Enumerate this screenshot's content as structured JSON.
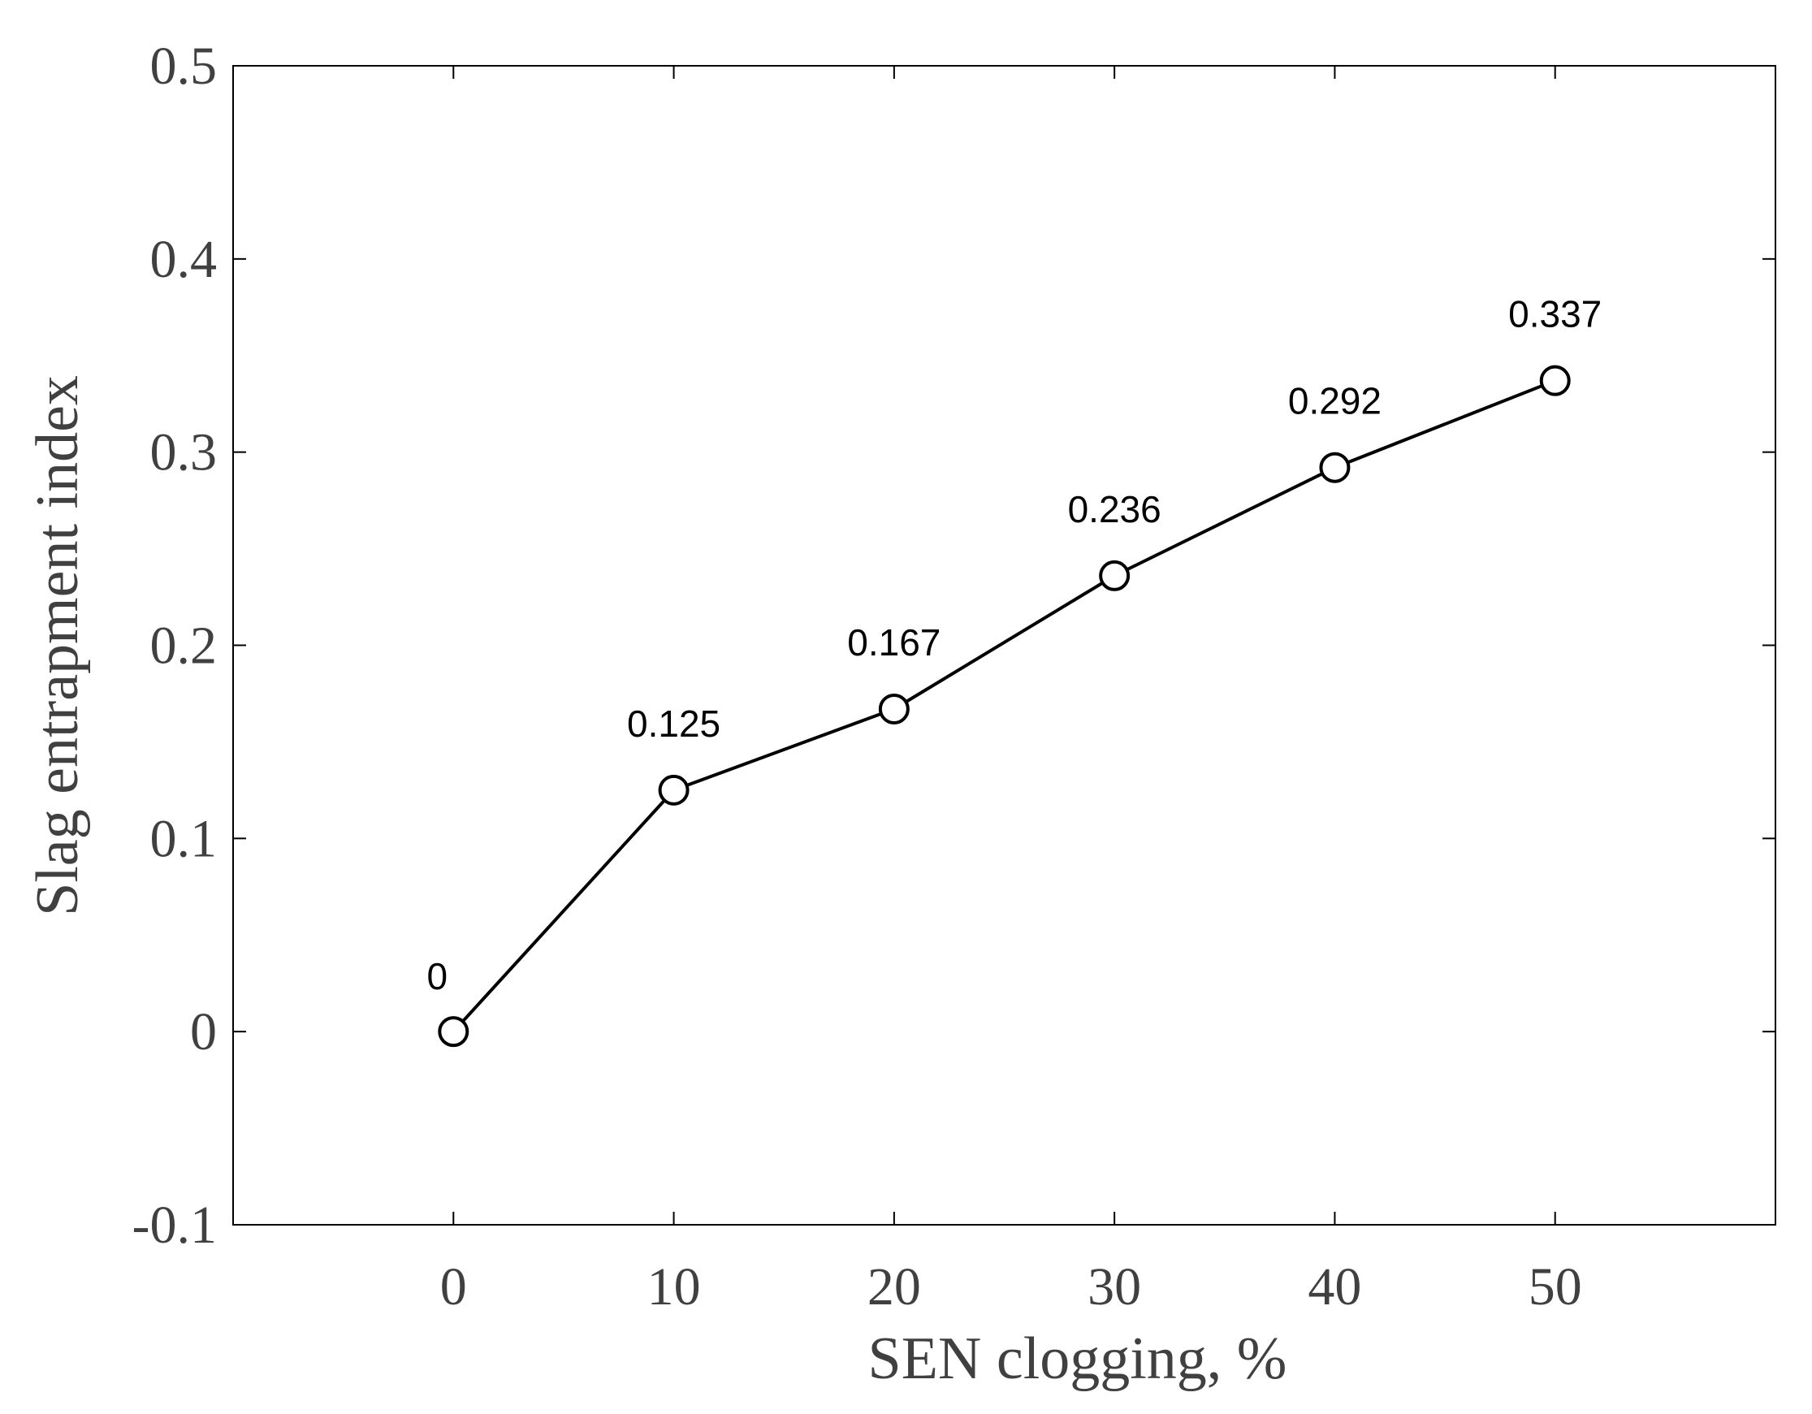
{
  "chart_data": {
    "type": "line",
    "title": "",
    "xlabel": "SEN clogging, %",
    "ylabel": "Slag entrapment index",
    "xlim": [
      -10,
      60
    ],
    "ylim": [
      -0.1,
      0.5
    ],
    "x_ticks": [
      0,
      10,
      20,
      30,
      40,
      50
    ],
    "x_tick_labels": [
      "0",
      "10",
      "20",
      "30",
      "40",
      "50"
    ],
    "y_ticks": [
      -0.1,
      0,
      0.1,
      0.2,
      0.3,
      0.4,
      0.5
    ],
    "y_tick_labels": [
      "-0.1",
      "0",
      "0.1",
      "0.2",
      "0.3",
      "0.4",
      "0.5"
    ],
    "grid": false,
    "legend": "none",
    "series": [
      {
        "x": [
          0,
          10,
          20,
          30,
          40,
          50
        ],
        "y": [
          0,
          0.125,
          0.167,
          0.236,
          0.292,
          0.337
        ],
        "labels": [
          "0",
          "0.125",
          "0.167",
          "0.236",
          "0.292",
          "0.337"
        ],
        "marker": "open-circle",
        "color": "#000000"
      }
    ]
  }
}
